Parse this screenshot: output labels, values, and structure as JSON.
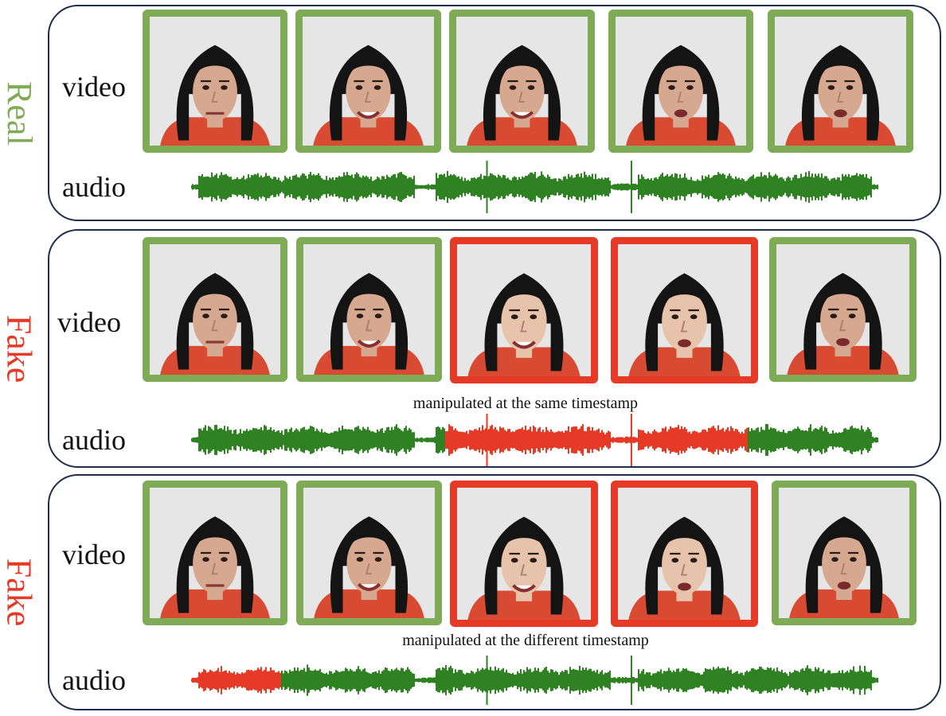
{
  "colors": {
    "real": "#7fab57",
    "fake": "#e73a26",
    "wave_real": "#2e8222",
    "wave_fake": "#e73a26",
    "panel_border": "#1f2d4d"
  },
  "row_labels": {
    "video": "video",
    "audio": "audio"
  },
  "panels": [
    {
      "label": "Real",
      "status": "real",
      "caption": "",
      "frames": [
        {
          "status": "real",
          "identity": "woman-a-neutral"
        },
        {
          "status": "real",
          "identity": "woman-a-smiling"
        },
        {
          "status": "real",
          "identity": "woman-a-smiling"
        },
        {
          "status": "real",
          "identity": "woman-a-talking"
        },
        {
          "status": "real",
          "identity": "woman-a-talking"
        }
      ],
      "audio_fake_fraction": {
        "start": 0,
        "end": 0
      }
    },
    {
      "label": "Fake",
      "status": "fake",
      "caption": "manipulated at the same timestamp",
      "frames": [
        {
          "status": "real",
          "identity": "woman-a-neutral"
        },
        {
          "status": "real",
          "identity": "woman-a-smiling"
        },
        {
          "status": "fake",
          "identity": "woman-b-smiling"
        },
        {
          "status": "fake",
          "identity": "woman-b-talking"
        },
        {
          "status": "real",
          "identity": "woman-a-talking"
        }
      ],
      "audio_fake_fraction": {
        "start": 0.37,
        "end": 0.81
      }
    },
    {
      "label": "Fake",
      "status": "fake",
      "caption": "manipulated at the different timestamp",
      "frames": [
        {
          "status": "real",
          "identity": "woman-a-neutral"
        },
        {
          "status": "real",
          "identity": "woman-a-smiling"
        },
        {
          "status": "fake",
          "identity": "woman-b-smiling"
        },
        {
          "status": "fake",
          "identity": "woman-b-talking"
        },
        {
          "status": "real",
          "identity": "woman-a-talking"
        }
      ],
      "audio_fake_fraction": {
        "start": 0,
        "end": 0.13
      }
    }
  ]
}
